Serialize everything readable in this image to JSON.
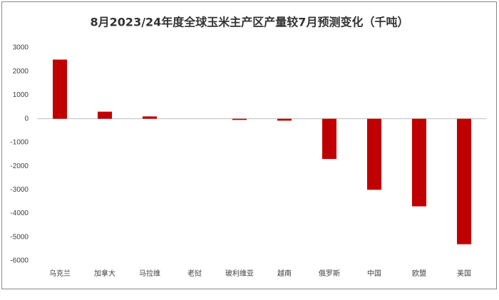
{
  "chart_data": {
    "type": "bar",
    "title": "8月2023/24年度全球玉米主产区产量较7月预测变化（千吨）",
    "categories": [
      "乌克兰",
      "加拿大",
      "马拉维",
      "老挝",
      "玻利维亚",
      "越南",
      "俄罗斯",
      "中国",
      "欧盟",
      "美国"
    ],
    "values": [
      2500,
      300,
      100,
      0,
      -50,
      -80,
      -1700,
      -3000,
      -3700,
      -5300
    ],
    "color": "#c00000",
    "ylim": [
      -6000,
      3000
    ],
    "yticks": [
      -6000,
      -5000,
      -4000,
      -3000,
      -2000,
      -1000,
      0,
      1000,
      2000,
      3000
    ],
    "grid": false
  }
}
